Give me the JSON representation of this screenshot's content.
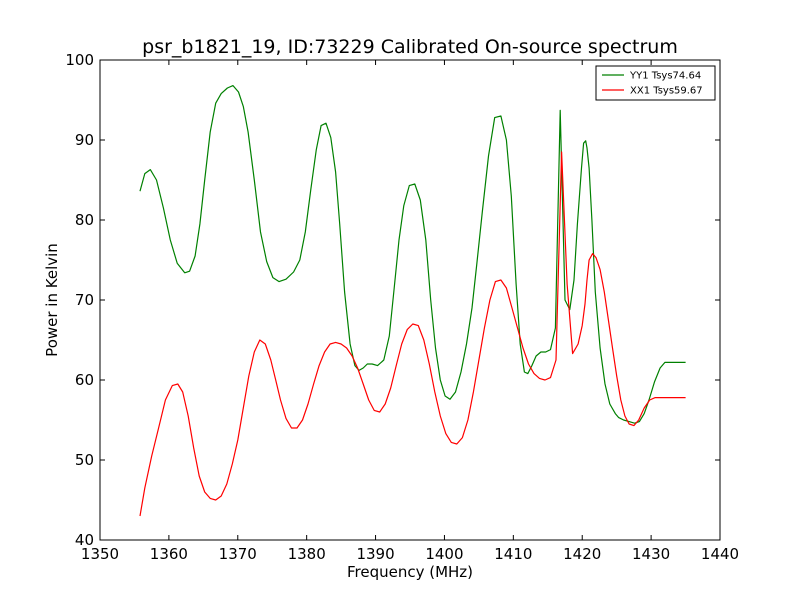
{
  "chart_data": {
    "type": "line",
    "title": "psr_b1821_19, ID:73229 Calibrated On-source spectrum",
    "xlabel": "Frequency (MHz)",
    "ylabel": "Power in Kelvin",
    "xlim": [
      1350,
      1440
    ],
    "ylim": [
      40,
      100
    ],
    "xticks": [
      1350,
      1360,
      1370,
      1380,
      1390,
      1400,
      1410,
      1420,
      1430,
      1440
    ],
    "yticks": [
      40,
      50,
      60,
      70,
      80,
      90,
      100
    ],
    "grid": false,
    "legend_position": "top-right",
    "series": [
      {
        "name": "YY1 Tsys74.64",
        "color": "#008000",
        "x": [
          1355.8,
          1356.5,
          1357.3,
          1358.2,
          1359.2,
          1360.2,
          1361.2,
          1362.3,
          1363.0,
          1363.8,
          1364.5,
          1365.2,
          1366.0,
          1366.8,
          1367.6,
          1368.5,
          1369.3,
          1370.1,
          1370.8,
          1371.5,
          1372.4,
          1373.3,
          1374.2,
          1375.1,
          1376.0,
          1377.0,
          1378.1,
          1379.0,
          1379.8,
          1380.6,
          1381.4,
          1382.1,
          1382.8,
          1383.5,
          1384.2,
          1384.8,
          1385.5,
          1386.3,
          1387.0,
          1387.6,
          1388.2,
          1388.8,
          1389.5,
          1390.3,
          1391.2,
          1392.0,
          1392.7,
          1393.4,
          1394.1,
          1394.9,
          1395.7,
          1396.5,
          1397.3,
          1398.0,
          1398.7,
          1399.4,
          1400.1,
          1400.8,
          1401.6,
          1402.4,
          1403.2,
          1404.0,
          1404.7,
          1405.5,
          1406.4,
          1407.3,
          1408.2,
          1409.0,
          1409.7,
          1410.4,
          1411.0,
          1411.6,
          1412.1,
          1412.7,
          1413.3,
          1414.0,
          1414.7,
          1415.4,
          1416.1,
          1416.8,
          1417.5,
          1418.2,
          1418.8,
          1419.3,
          1419.9,
          1420.2,
          1420.5,
          1420.7,
          1421.0,
          1421.4,
          1421.9,
          1422.6,
          1423.3,
          1424.0,
          1424.8,
          1425.3,
          1426.0,
          1426.8,
          1427.6,
          1428.3,
          1429.0,
          1429.7,
          1430.5,
          1431.3,
          1432.0,
          1432.7,
          1433.4,
          1434.2,
          1435.0
        ],
        "values": [
          83.6,
          85.8,
          86.3,
          85.0,
          81.5,
          77.5,
          74.6,
          73.4,
          73.6,
          75.5,
          79.5,
          85.0,
          91.0,
          94.6,
          95.8,
          96.5,
          96.8,
          96.0,
          94.2,
          91.0,
          85.0,
          78.5,
          74.8,
          72.8,
          72.3,
          72.6,
          73.5,
          75.0,
          78.5,
          83.8,
          88.8,
          91.8,
          92.1,
          90.3,
          86.0,
          79.5,
          71.0,
          64.5,
          61.8,
          61.2,
          61.5,
          62.0,
          62.0,
          61.8,
          62.5,
          65.5,
          71.5,
          77.5,
          81.8,
          84.3,
          84.5,
          82.5,
          77.5,
          70.0,
          64.0,
          60.0,
          58.0,
          57.6,
          58.5,
          61.0,
          64.5,
          69.0,
          74.5,
          81.0,
          88.0,
          92.8,
          93.0,
          90.0,
          83.0,
          72.0,
          64.5,
          61.0,
          60.8,
          61.8,
          63.0,
          63.5,
          63.5,
          63.8,
          66.5,
          93.7,
          70.0,
          68.8,
          72.5,
          79.5,
          86.5,
          89.6,
          89.9,
          89.0,
          86.5,
          80.0,
          71.0,
          64.0,
          59.5,
          57.0,
          55.8,
          55.3,
          55.0,
          54.8,
          54.6,
          54.8,
          55.8,
          57.5,
          59.8,
          61.5,
          62.2,
          62.2,
          62.2,
          62.2,
          62.2
        ]
      },
      {
        "name": "XX1 Tsys59.67",
        "color": "#ff0000",
        "x": [
          1355.8,
          1356.5,
          1357.5,
          1358.5,
          1359.5,
          1360.5,
          1361.3,
          1362.0,
          1362.8,
          1363.6,
          1364.4,
          1365.2,
          1366.0,
          1366.8,
          1367.6,
          1368.4,
          1369.2,
          1370.0,
          1370.8,
          1371.6,
          1372.4,
          1373.2,
          1374.0,
          1374.8,
          1375.5,
          1376.2,
          1377.0,
          1377.8,
          1378.6,
          1379.4,
          1380.2,
          1381.0,
          1381.8,
          1382.6,
          1383.4,
          1384.2,
          1385.0,
          1385.8,
          1386.6,
          1387.4,
          1388.2,
          1389.0,
          1389.8,
          1390.6,
          1391.4,
          1392.2,
          1393.0,
          1393.8,
          1394.6,
          1395.4,
          1396.2,
          1397.0,
          1397.8,
          1398.6,
          1399.4,
          1400.2,
          1401.0,
          1401.8,
          1402.6,
          1403.4,
          1404.2,
          1405.0,
          1405.8,
          1406.6,
          1407.4,
          1408.2,
          1409.0,
          1409.8,
          1410.6,
          1411.4,
          1412.2,
          1413.0,
          1413.8,
          1414.6,
          1415.4,
          1416.2,
          1417.0,
          1417.8,
          1418.6,
          1419.4,
          1420.0,
          1420.4,
          1420.7,
          1421.0,
          1421.5,
          1422.0,
          1422.6,
          1423.2,
          1423.8,
          1424.4,
          1425.0,
          1425.6,
          1426.2,
          1426.8,
          1427.5,
          1428.2,
          1429.0,
          1429.8,
          1430.6,
          1431.4,
          1432.2,
          1433.0,
          1433.8,
          1434.6,
          1435.0
        ],
        "values": [
          43.0,
          46.5,
          50.5,
          54.0,
          57.5,
          59.3,
          59.5,
          58.5,
          55.5,
          51.5,
          48.0,
          46.0,
          45.2,
          45.0,
          45.5,
          47.0,
          49.5,
          52.5,
          56.5,
          60.5,
          63.5,
          65.0,
          64.5,
          62.5,
          60.0,
          57.5,
          55.2,
          54.0,
          54.0,
          55.0,
          57.0,
          59.5,
          61.8,
          63.5,
          64.5,
          64.7,
          64.5,
          64.0,
          63.0,
          61.5,
          59.5,
          57.5,
          56.2,
          56.0,
          57.0,
          59.0,
          61.8,
          64.5,
          66.3,
          67.0,
          66.8,
          65.0,
          62.0,
          58.5,
          55.5,
          53.3,
          52.2,
          52.0,
          52.8,
          55.0,
          58.5,
          62.5,
          66.5,
          70.0,
          72.3,
          72.5,
          71.5,
          69.0,
          66.5,
          64.0,
          62.0,
          60.8,
          60.2,
          60.0,
          60.3,
          62.5,
          88.5,
          72.0,
          63.3,
          64.5,
          66.8,
          69.5,
          72.5,
          75.0,
          75.8,
          75.3,
          73.8,
          71.0,
          67.5,
          64.0,
          60.5,
          57.5,
          55.5,
          54.5,
          54.3,
          55.0,
          56.5,
          57.5,
          57.8,
          57.8,
          57.8,
          57.8,
          57.8,
          57.8,
          57.8
        ]
      }
    ]
  }
}
